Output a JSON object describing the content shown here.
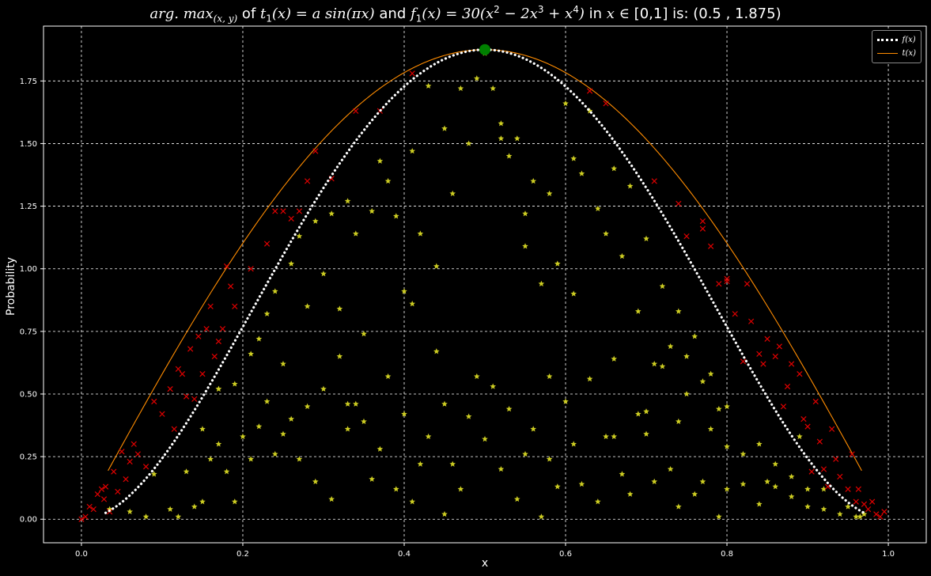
{
  "title": {
    "argmax": "arg. max",
    "argmax_sub": "(x, y)",
    "of": " of ",
    "t1_lhs": "t",
    "t1_sub": "1",
    "t1_rhs": "(x) = a sin(πx)",
    "and": " and ",
    "f1_lhs": "f",
    "f1_sub": "1",
    "f1_rhs_a": "(x) = 30(x",
    "f1_exp2": "2",
    "f1_rhs_b": " − 2x",
    "f1_exp3": "3",
    "f1_rhs_c": " + x",
    "f1_exp4": "4",
    "f1_rhs_d": ")",
    "in": " in ",
    "domain_var": "x ∈",
    "domain": " [0,1] is:  (0.5 , 1.875)"
  },
  "legend": {
    "f_label": "f(x)",
    "t_label": "t(x)",
    "f_color": "#ffffff",
    "t_color": "#ff8c00",
    "placement": "top-right"
  },
  "chart_data": {
    "type": "scatter",
    "xlabel": "x",
    "ylabel": "Probability",
    "xlim": [
      -0.047,
      1.047
    ],
    "ylim": [
      -0.094,
      1.969
    ],
    "grid": true,
    "x_ticks": [
      "0.0",
      "0.2",
      "0.4",
      "0.6",
      "0.8",
      "1.0"
    ],
    "y_ticks": [
      "0.00",
      "0.25",
      "0.50",
      "0.75",
      "1.00",
      "1.25",
      "1.50",
      "1.75"
    ],
    "series": [
      {
        "name": "f(x)",
        "kind": "line",
        "style": "dotted",
        "color": "#ffffff",
        "formula": "30*(x^2 - 2x^3 + x^4)",
        "x_range": [
          0.03,
          0.97
        ]
      },
      {
        "name": "t(x)",
        "kind": "line",
        "style": "solid",
        "color": "#ff8c00",
        "formula": "1.875*sin(pi*x)",
        "x_range": [
          0.033,
          0.967
        ]
      },
      {
        "kind": "scatter",
        "marker": "star",
        "color": "#cccc22",
        "description": "accepted samples",
        "points": [
          [
            0.035,
            0.04
          ],
          [
            0.06,
            0.03
          ],
          [
            0.08,
            0.01
          ],
          [
            0.09,
            0.18
          ],
          [
            0.11,
            0.04
          ],
          [
            0.12,
            0.01
          ],
          [
            0.13,
            0.19
          ],
          [
            0.14,
            0.05
          ],
          [
            0.15,
            0.07
          ],
          [
            0.16,
            0.24
          ],
          [
            0.17,
            0.3
          ],
          [
            0.18,
            0.19
          ],
          [
            0.19,
            0.07
          ],
          [
            0.2,
            0.33
          ],
          [
            0.21,
            0.24
          ],
          [
            0.22,
            0.37
          ],
          [
            0.23,
            0.47
          ],
          [
            0.24,
            0.26
          ],
          [
            0.25,
            0.62
          ],
          [
            0.26,
            0.4
          ],
          [
            0.27,
            0.24
          ],
          [
            0.28,
            0.45
          ],
          [
            0.29,
            0.15
          ],
          [
            0.3,
            0.52
          ],
          [
            0.31,
            0.08
          ],
          [
            0.32,
            0.65
          ],
          [
            0.33,
            0.36
          ],
          [
            0.34,
            0.46
          ],
          [
            0.35,
            0.39
          ],
          [
            0.36,
            0.16
          ],
          [
            0.37,
            0.28
          ],
          [
            0.38,
            0.57
          ],
          [
            0.39,
            0.12
          ],
          [
            0.4,
            0.42
          ],
          [
            0.41,
            0.07
          ],
          [
            0.42,
            0.22
          ],
          [
            0.43,
            0.33
          ],
          [
            0.44,
            0.67
          ],
          [
            0.45,
            0.02
          ],
          [
            0.46,
            0.22
          ],
          [
            0.47,
            0.12
          ],
          [
            0.48,
            0.41
          ],
          [
            0.49,
            0.57
          ],
          [
            0.5,
            0.32
          ],
          [
            0.51,
            0.53
          ],
          [
            0.52,
            0.2
          ],
          [
            0.53,
            0.44
          ],
          [
            0.54,
            0.08
          ],
          [
            0.55,
            0.26
          ],
          [
            0.56,
            0.36
          ],
          [
            0.57,
            0.01
          ],
          [
            0.58,
            0.24
          ],
          [
            0.59,
            0.13
          ],
          [
            0.6,
            0.47
          ],
          [
            0.61,
            0.3
          ],
          [
            0.62,
            0.14
          ],
          [
            0.63,
            0.56
          ],
          [
            0.64,
            0.07
          ],
          [
            0.65,
            0.33
          ],
          [
            0.66,
            0.64
          ],
          [
            0.67,
            0.18
          ],
          [
            0.68,
            0.1
          ],
          [
            0.69,
            0.42
          ],
          [
            0.7,
            0.34
          ],
          [
            0.71,
            0.15
          ],
          [
            0.72,
            0.61
          ],
          [
            0.73,
            0.2
          ],
          [
            0.74,
            0.05
          ],
          [
            0.75,
            0.5
          ],
          [
            0.76,
            0.1
          ],
          [
            0.77,
            0.15
          ],
          [
            0.78,
            0.36
          ],
          [
            0.79,
            0.01
          ],
          [
            0.8,
            0.29
          ],
          [
            0.82,
            0.14
          ],
          [
            0.84,
            0.06
          ],
          [
            0.86,
            0.13
          ],
          [
            0.88,
            0.09
          ],
          [
            0.9,
            0.05
          ],
          [
            0.92,
            0.04
          ],
          [
            0.94,
            0.02
          ],
          [
            0.96,
            0.01
          ],
          [
            0.15,
            0.36
          ],
          [
            0.17,
            0.52
          ],
          [
            0.19,
            0.54
          ],
          [
            0.21,
            0.66
          ],
          [
            0.22,
            0.72
          ],
          [
            0.23,
            0.82
          ],
          [
            0.24,
            0.91
          ],
          [
            0.26,
            1.02
          ],
          [
            0.27,
            1.13
          ],
          [
            0.28,
            0.85
          ],
          [
            0.29,
            1.19
          ],
          [
            0.3,
            0.98
          ],
          [
            0.31,
            1.22
          ],
          [
            0.32,
            0.84
          ],
          [
            0.33,
            1.27
          ],
          [
            0.34,
            1.14
          ],
          [
            0.35,
            0.74
          ],
          [
            0.36,
            1.23
          ],
          [
            0.37,
            1.43
          ],
          [
            0.38,
            1.35
          ],
          [
            0.39,
            1.21
          ],
          [
            0.4,
            0.91
          ],
          [
            0.41,
            1.47
          ],
          [
            0.42,
            1.14
          ],
          [
            0.43,
            1.73
          ],
          [
            0.44,
            1.01
          ],
          [
            0.45,
            1.56
          ],
          [
            0.46,
            1.3
          ],
          [
            0.47,
            1.72
          ],
          [
            0.48,
            1.5
          ],
          [
            0.49,
            1.76
          ],
          [
            0.5,
            1.86
          ],
          [
            0.51,
            1.72
          ],
          [
            0.52,
            1.58
          ],
          [
            0.53,
            1.45
          ],
          [
            0.54,
            1.52
          ],
          [
            0.55,
            1.22
          ],
          [
            0.56,
            1.35
          ],
          [
            0.57,
            0.94
          ],
          [
            0.58,
            1.3
          ],
          [
            0.59,
            1.02
          ],
          [
            0.6,
            1.66
          ],
          [
            0.61,
            1.44
          ],
          [
            0.62,
            1.38
          ],
          [
            0.63,
            1.63
          ],
          [
            0.64,
            1.24
          ],
          [
            0.65,
            1.14
          ],
          [
            0.66,
            1.4
          ],
          [
            0.67,
            1.05
          ],
          [
            0.68,
            1.33
          ],
          [
            0.69,
            0.83
          ],
          [
            0.7,
            1.12
          ],
          [
            0.71,
            0.62
          ],
          [
            0.72,
            0.93
          ],
          [
            0.73,
            0.69
          ],
          [
            0.74,
            0.83
          ],
          [
            0.75,
            0.65
          ],
          [
            0.76,
            0.73
          ],
          [
            0.77,
            0.55
          ],
          [
            0.78,
            0.58
          ],
          [
            0.8,
            0.45
          ],
          [
            0.82,
            0.26
          ],
          [
            0.84,
            0.3
          ],
          [
            0.86,
            0.22
          ],
          [
            0.88,
            0.17
          ],
          [
            0.9,
            0.12
          ],
          [
            0.17,
            0.52
          ],
          [
            0.25,
            0.34
          ],
          [
            0.33,
            0.46
          ],
          [
            0.41,
            0.86
          ],
          [
            0.45,
            0.46
          ],
          [
            0.52,
            1.52
          ],
          [
            0.55,
            1.09
          ],
          [
            0.58,
            0.57
          ],
          [
            0.61,
            0.9
          ],
          [
            0.66,
            0.33
          ],
          [
            0.7,
            0.43
          ],
          [
            0.74,
            0.39
          ],
          [
            0.79,
            0.44
          ],
          [
            0.8,
            0.12
          ],
          [
            0.85,
            0.15
          ],
          [
            0.89,
            0.33
          ],
          [
            0.92,
            0.12
          ],
          [
            0.95,
            0.05
          ],
          [
            0.97,
            0.02
          ],
          [
            0.965,
            0.01
          ]
        ]
      },
      {
        "kind": "scatter",
        "marker": "x",
        "color": "#e00000",
        "description": "rejected samples",
        "points": [
          [
            0.0,
            0.0
          ],
          [
            0.005,
            0.01
          ],
          [
            0.01,
            0.05
          ],
          [
            0.015,
            0.04
          ],
          [
            0.02,
            0.1
          ],
          [
            0.025,
            0.12
          ],
          [
            0.028,
            0.08
          ],
          [
            0.03,
            0.13
          ],
          [
            0.035,
            0.03
          ],
          [
            0.04,
            0.19
          ],
          [
            0.045,
            0.11
          ],
          [
            0.05,
            0.27
          ],
          [
            0.055,
            0.16
          ],
          [
            0.06,
            0.23
          ],
          [
            0.065,
            0.3
          ],
          [
            0.07,
            0.26
          ],
          [
            0.08,
            0.21
          ],
          [
            0.09,
            0.47
          ],
          [
            0.1,
            0.42
          ],
          [
            0.11,
            0.52
          ],
          [
            0.115,
            0.36
          ],
          [
            0.12,
            0.6
          ],
          [
            0.125,
            0.58
          ],
          [
            0.13,
            0.49
          ],
          [
            0.135,
            0.68
          ],
          [
            0.14,
            0.48
          ],
          [
            0.145,
            0.73
          ],
          [
            0.15,
            0.58
          ],
          [
            0.155,
            0.76
          ],
          [
            0.16,
            0.85
          ],
          [
            0.165,
            0.65
          ],
          [
            0.17,
            0.71
          ],
          [
            0.175,
            0.76
          ],
          [
            0.18,
            1.01
          ],
          [
            0.185,
            0.93
          ],
          [
            0.19,
            0.85
          ],
          [
            0.21,
            1.0
          ],
          [
            0.23,
            1.1
          ],
          [
            0.24,
            1.23
          ],
          [
            0.25,
            1.23
          ],
          [
            0.26,
            1.2
          ],
          [
            0.27,
            1.23
          ],
          [
            0.28,
            1.35
          ],
          [
            0.29,
            1.47
          ],
          [
            0.31,
            1.36
          ],
          [
            0.34,
            1.63
          ],
          [
            0.37,
            1.63
          ],
          [
            0.41,
            1.78
          ],
          [
            0.63,
            1.71
          ],
          [
            0.65,
            1.66
          ],
          [
            0.71,
            1.35
          ],
          [
            0.74,
            1.26
          ],
          [
            0.75,
            1.13
          ],
          [
            0.77,
            1.16
          ],
          [
            0.78,
            1.09
          ],
          [
            0.8,
            0.96
          ],
          [
            0.81,
            0.82
          ],
          [
            0.82,
            0.63
          ],
          [
            0.83,
            0.79
          ],
          [
            0.84,
            0.66
          ],
          [
            0.85,
            0.72
          ],
          [
            0.86,
            0.65
          ],
          [
            0.87,
            0.45
          ],
          [
            0.88,
            0.62
          ],
          [
            0.89,
            0.58
          ],
          [
            0.9,
            0.37
          ],
          [
            0.91,
            0.47
          ],
          [
            0.92,
            0.2
          ],
          [
            0.93,
            0.36
          ],
          [
            0.94,
            0.17
          ],
          [
            0.95,
            0.12
          ],
          [
            0.96,
            0.07
          ],
          [
            0.97,
            0.06
          ],
          [
            0.975,
            0.04
          ],
          [
            0.98,
            0.07
          ],
          [
            0.985,
            0.02
          ],
          [
            0.99,
            0.01
          ],
          [
            0.995,
            0.03
          ],
          [
            0.963,
            0.12
          ],
          [
            0.955,
            0.26
          ],
          [
            0.935,
            0.24
          ],
          [
            0.925,
            0.13
          ],
          [
            0.915,
            0.31
          ],
          [
            0.905,
            0.19
          ],
          [
            0.895,
            0.4
          ],
          [
            0.875,
            0.53
          ],
          [
            0.865,
            0.69
          ],
          [
            0.845,
            0.62
          ],
          [
            0.825,
            0.94
          ],
          [
            0.8,
            0.95
          ],
          [
            0.79,
            0.94
          ],
          [
            0.77,
            1.19
          ]
        ]
      },
      {
        "kind": "scatter",
        "marker": "circle",
        "color": "#008000",
        "description": "argmax point",
        "points": [
          [
            0.5,
            1.875
          ]
        ]
      }
    ]
  }
}
